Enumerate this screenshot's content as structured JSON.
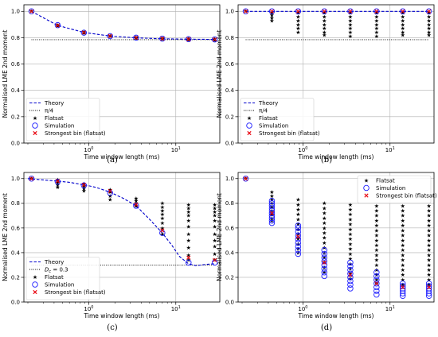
{
  "figure": {
    "caption_a": "(a)",
    "caption_b": "(b)",
    "caption_c": "(c)",
    "caption_d": "(d)"
  },
  "colors": {
    "theory": "#0000cc",
    "simulation": "#1f1fff",
    "strongest": "#e8000b",
    "flatsat": "#000000",
    "grid": "#b0b0b0"
  },
  "chart_data": [
    {
      "id": "a",
      "type": "scatter",
      "xlabel": "Time window length (ms)",
      "ylabel": "Normalised LME 2nd moment",
      "xscale": "log",
      "xlim": [
        0.18,
        32
      ],
      "ylim": [
        0.0,
        1.05
      ],
      "xticks": [
        {
          "v": 1,
          "label": "10^0"
        },
        {
          "v": 10,
          "label": "10^1"
        }
      ],
      "yticks": [
        0.0,
        0.2,
        0.4,
        0.6,
        0.8,
        1.0
      ],
      "grid": true,
      "legend_position": "lower-left",
      "legend": [
        "Theory",
        "π/4",
        "Flatsat",
        "Simulation",
        "Strongest bin (flatsat)"
      ],
      "x": [
        0.22,
        0.44,
        0.88,
        1.76,
        3.5,
        7,
        14,
        28
      ],
      "theory": [
        1.0,
        0.893,
        0.84,
        0.812,
        0.799,
        0.792,
        0.789,
        0.787
      ],
      "reference_line": {
        "label": "π/4",
        "value": 0.785
      },
      "simulation": [
        1.0,
        0.895,
        0.838,
        0.812,
        0.8,
        0.793,
        0.789,
        0.787
      ],
      "strongest_bin": [
        1.0,
        0.893,
        0.84,
        0.813,
        0.8,
        0.793,
        0.789,
        0.787
      ],
      "flatsat": [
        [
          1.0
        ],
        [
          0.895,
          0.89
        ],
        [
          0.845,
          0.835
        ],
        [
          0.815,
          0.81
        ],
        [
          0.802,
          0.797
        ],
        [
          0.795,
          0.79
        ],
        [
          0.792,
          0.785
        ],
        [
          0.79,
          0.782
        ]
      ]
    },
    {
      "id": "b",
      "type": "scatter",
      "xlabel": "Time window length (ms)",
      "ylabel": "Normalised LME 2nd moment",
      "xscale": "log",
      "xlim": [
        0.18,
        32
      ],
      "ylim": [
        0.0,
        1.05
      ],
      "xticks": [
        {
          "v": 1,
          "label": "10^0"
        },
        {
          "v": 10,
          "label": "10^1"
        }
      ],
      "yticks": [
        0.0,
        0.2,
        0.4,
        0.6,
        0.8,
        1.0
      ],
      "grid": true,
      "legend_position": "lower-left",
      "legend": [
        "Theory",
        "π/4",
        "Flatsat",
        "Simulation",
        "Strongest bin (flatsat)"
      ],
      "x": [
        0.22,
        0.44,
        0.88,
        1.76,
        3.5,
        7,
        14,
        28
      ],
      "theory": [
        1.0,
        1.0,
        1.0,
        1.0,
        1.0,
        1.0,
        1.0,
        1.0
      ],
      "reference_line": {
        "label": "π/4",
        "value": 0.785
      },
      "simulation": [
        1.0,
        1.0,
        1.0,
        1.0,
        1.0,
        1.0,
        1.0,
        1.0
      ],
      "strongest_bin": [
        1.0,
        1.0,
        1.0,
        1.0,
        1.0,
        1.0,
        1.0,
        1.0
      ],
      "flatsat": [
        [
          1.0
        ],
        [
          0.99,
          0.97,
          0.95,
          0.93
        ],
        [
          0.99,
          0.96,
          0.93,
          0.9,
          0.87,
          0.84
        ],
        [
          0.99,
          0.96,
          0.93,
          0.9,
          0.87,
          0.84,
          0.82
        ],
        [
          0.99,
          0.96,
          0.93,
          0.9,
          0.87,
          0.84,
          0.81
        ],
        [
          0.99,
          0.96,
          0.93,
          0.9,
          0.87,
          0.84,
          0.81
        ],
        [
          0.99,
          0.96,
          0.93,
          0.9,
          0.87,
          0.84,
          0.82
        ],
        [
          0.99,
          0.96,
          0.93,
          0.9,
          0.87,
          0.84,
          0.82
        ]
      ]
    },
    {
      "id": "c",
      "type": "scatter",
      "xlabel": "Time window length (ms)",
      "ylabel": "Normalised LME 2nd moment",
      "xscale": "log",
      "xlim": [
        0.18,
        32
      ],
      "ylim": [
        0.0,
        1.05
      ],
      "xticks": [
        {
          "v": 1,
          "label": "10^0"
        },
        {
          "v": 10,
          "label": "10^1"
        }
      ],
      "yticks": [
        0.0,
        0.2,
        0.4,
        0.6,
        0.8,
        1.0
      ],
      "grid": true,
      "legend_position": "lower-left",
      "legend": [
        "Theory",
        "D_c = 0.3",
        "Flatsat",
        "Simulation",
        "Strongest bin (flatsat)"
      ],
      "x": [
        0.22,
        0.44,
        0.88,
        1.76,
        3.5,
        7,
        14,
        28
      ],
      "theory": [
        1.0,
        0.98,
        0.95,
        0.89,
        0.78,
        0.56,
        0.31,
        0.31
      ],
      "theory_curve": {
        "x": [
          0.2,
          0.3,
          0.44,
          0.6,
          0.88,
          1.2,
          1.76,
          2.5,
          3.5,
          5,
          7,
          9,
          11,
          14,
          17,
          22,
          28
        ],
        "y": [
          1.0,
          0.99,
          0.98,
          0.97,
          0.95,
          0.93,
          0.89,
          0.84,
          0.78,
          0.67,
          0.56,
          0.46,
          0.37,
          0.31,
          0.295,
          0.305,
          0.31
        ]
      },
      "reference_line": {
        "label": "D_c = 0.3",
        "value": 0.3
      },
      "simulation": [
        1.0,
        0.975,
        0.945,
        0.885,
        0.78,
        0.56,
        0.32,
        0.32
      ],
      "strongest_bin": [
        1.0,
        0.98,
        0.95,
        0.9,
        0.79,
        0.58,
        0.36,
        0.34
      ],
      "flatsat": [
        [
          1.0
        ],
        [
          0.99,
          0.97,
          0.95,
          0.93
        ],
        [
          0.96,
          0.94,
          0.92,
          0.9
        ],
        [
          0.91,
          0.89,
          0.86,
          0.83
        ],
        [
          0.84,
          0.82,
          0.8,
          0.78
        ],
        [
          0.8,
          0.77,
          0.74,
          0.71,
          0.68,
          0.64,
          0.6,
          0.55
        ],
        [
          0.79,
          0.76,
          0.73,
          0.7,
          0.66,
          0.61,
          0.55,
          0.5,
          0.44,
          0.38,
          0.34
        ],
        [
          0.79,
          0.76,
          0.73,
          0.7,
          0.66,
          0.61,
          0.55,
          0.5,
          0.45,
          0.39,
          0.34
        ]
      ]
    },
    {
      "id": "d",
      "type": "scatter",
      "xlabel": "Time window length (ms)",
      "ylabel": "Normalised LME 2nd moment",
      "xscale": "log",
      "xlim": [
        0.18,
        32
      ],
      "ylim": [
        0.0,
        1.05
      ],
      "xticks": [
        {
          "v": 1,
          "label": "10^0"
        },
        {
          "v": 10,
          "label": "10^1"
        }
      ],
      "yticks": [
        0.0,
        0.2,
        0.4,
        0.6,
        0.8,
        1.0
      ],
      "grid": true,
      "legend_position": "upper-right",
      "legend": [
        "Flatsat",
        "Simulation",
        "Strongest bin (flatsat)"
      ],
      "x": [
        0.22,
        0.44,
        0.88,
        1.76,
        3.5,
        7,
        14,
        28
      ],
      "strongest_bin": [
        1.0,
        0.72,
        0.53,
        0.32,
        0.22,
        0.15,
        0.12,
        0.12
      ],
      "simulation_groups": [
        [
          1.0
        ],
        [
          0.82,
          0.8,
          0.78,
          0.76,
          0.74,
          0.72,
          0.7,
          0.68,
          0.66,
          0.64
        ],
        [
          0.62,
          0.6,
          0.57,
          0.54,
          0.51,
          0.48,
          0.45,
          0.42,
          0.39
        ],
        [
          0.42,
          0.39,
          0.36,
          0.33,
          0.3,
          0.27,
          0.24,
          0.21
        ],
        [
          0.32,
          0.29,
          0.26,
          0.23,
          0.2,
          0.17,
          0.14,
          0.11
        ],
        [
          0.24,
          0.21,
          0.18,
          0.15,
          0.12,
          0.09,
          0.06
        ],
        [
          0.15,
          0.13,
          0.11,
          0.09,
          0.07,
          0.05
        ],
        [
          0.15,
          0.13,
          0.11,
          0.09,
          0.07,
          0.05
        ]
      ],
      "flatsat": [
        [
          1.0
        ],
        [
          0.89,
          0.86,
          0.83,
          0.8,
          0.77,
          0.74,
          0.71,
          0.68,
          0.66
        ],
        [
          0.83,
          0.79,
          0.75,
          0.71,
          0.67,
          0.63,
          0.59,
          0.55,
          0.51,
          0.47,
          0.43,
          0.4
        ],
        [
          0.8,
          0.76,
          0.72,
          0.68,
          0.64,
          0.6,
          0.56,
          0.52,
          0.48,
          0.44,
          0.4,
          0.36,
          0.32,
          0.28,
          0.24
        ],
        [
          0.79,
          0.75,
          0.71,
          0.67,
          0.63,
          0.59,
          0.55,
          0.51,
          0.47,
          0.43,
          0.39,
          0.35,
          0.31,
          0.27,
          0.23,
          0.19
        ],
        [
          0.78,
          0.74,
          0.7,
          0.66,
          0.62,
          0.58,
          0.54,
          0.5,
          0.46,
          0.42,
          0.38,
          0.34,
          0.3,
          0.26,
          0.22,
          0.18,
          0.15
        ],
        [
          0.78,
          0.74,
          0.7,
          0.66,
          0.62,
          0.58,
          0.54,
          0.5,
          0.46,
          0.42,
          0.38,
          0.34,
          0.3,
          0.26,
          0.22,
          0.18,
          0.14
        ],
        [
          0.78,
          0.74,
          0.7,
          0.66,
          0.62,
          0.58,
          0.54,
          0.5,
          0.46,
          0.42,
          0.38,
          0.34,
          0.3,
          0.26,
          0.22,
          0.18,
          0.14
        ]
      ]
    }
  ]
}
